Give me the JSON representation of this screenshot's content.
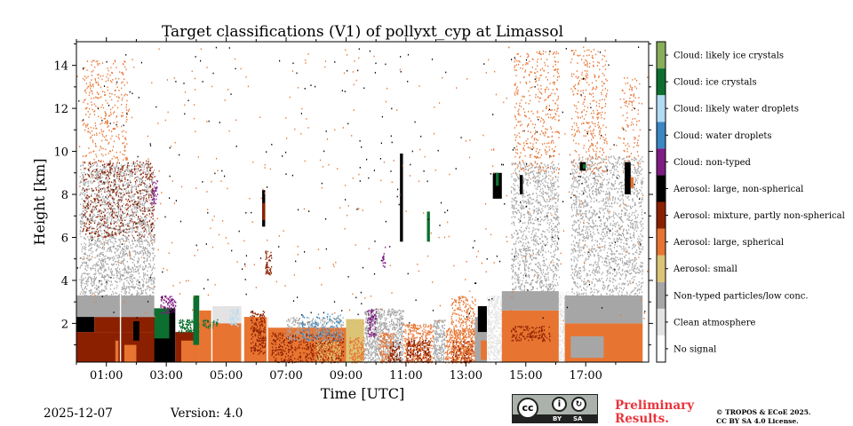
{
  "chart_data": {
    "type": "heatmap",
    "title": "Target classifications (V1) of pollyxt_cyp at Limassol",
    "xlabel": "Time [UTC]",
    "ylabel": "Height [km]",
    "xlim": [
      0,
      19.1
    ],
    "ylim": [
      0.2,
      15.1
    ],
    "x_ticks": [
      {
        "value": 1,
        "label": "01:00"
      },
      {
        "value": 3,
        "label": "03:00"
      },
      {
        "value": 5,
        "label": "05:00"
      },
      {
        "value": 7,
        "label": "07:00"
      },
      {
        "value": 9,
        "label": "09:00"
      },
      {
        "value": 11,
        "label": "11:00"
      },
      {
        "value": 13,
        "label": "13:00"
      },
      {
        "value": 15,
        "label": "15:00"
      },
      {
        "value": 17,
        "label": "17:00"
      }
    ],
    "y_ticks": [
      {
        "value": 2,
        "label": "2"
      },
      {
        "value": 4,
        "label": "4"
      },
      {
        "value": 6,
        "label": "6"
      },
      {
        "value": 8,
        "label": "8"
      },
      {
        "value": 10,
        "label": "10"
      },
      {
        "value": 12,
        "label": "12"
      },
      {
        "value": 14,
        "label": "14"
      }
    ],
    "classes": [
      {
        "id": 0,
        "label": "No signal",
        "color": "#ffffff"
      },
      {
        "id": 1,
        "label": "Clean atmosphere",
        "color": "#e3e3e3"
      },
      {
        "id": 2,
        "label": "Non-typed particles/low conc.",
        "color": "#a6a6a6"
      },
      {
        "id": 3,
        "label": "Aerosol: small",
        "color": "#dcc476"
      },
      {
        "id": 4,
        "label": "Aerosol: large, spherical",
        "color": "#e87431"
      },
      {
        "id": 5,
        "label": "Aerosol: mixture, partly non-spherical",
        "color": "#8b2000"
      },
      {
        "id": 6,
        "label": "Aerosol: large, non-spherical",
        "color": "#000000"
      },
      {
        "id": 7,
        "label": "Cloud: non-typed",
        "color": "#7e1b83"
      },
      {
        "id": 8,
        "label": "Cloud: water droplets",
        "color": "#3987c4"
      },
      {
        "id": 9,
        "label": "Cloud: likely water droplets",
        "color": "#b2dbf4"
      },
      {
        "id": 10,
        "label": "Cloud: ice crystals",
        "color": "#0d6f2f"
      },
      {
        "id": 11,
        "label": "Cloud: likely ice crystals",
        "color": "#88ae5c"
      }
    ],
    "regions": [
      {
        "x0": 0.0,
        "x1": 2.7,
        "y0": 0.2,
        "y1": 1.6,
        "cls": 5
      },
      {
        "x0": 0.3,
        "x1": 1.3,
        "y0": 0.6,
        "y1": 1.5,
        "cls": 5
      },
      {
        "x0": 1.3,
        "x1": 1.4,
        "y0": 0.2,
        "y1": 1.2,
        "cls": 4
      },
      {
        "x0": 1.6,
        "x1": 2.0,
        "y0": 0.2,
        "y1": 1.0,
        "cls": 4
      },
      {
        "x0": 0.0,
        "x1": 0.6,
        "y0": 1.6,
        "y1": 2.4,
        "cls": 6
      },
      {
        "x0": 0.6,
        "x1": 2.7,
        "y0": 1.6,
        "y1": 2.3,
        "cls": 5
      },
      {
        "x0": 1.9,
        "x1": 2.1,
        "y0": 1.2,
        "y1": 2.1,
        "cls": 6
      },
      {
        "x0": 0.0,
        "x1": 2.6,
        "y0": 2.3,
        "y1": 3.3,
        "cls": 2
      },
      {
        "x0": 0.1,
        "x1": 2.6,
        "y0": 3.3,
        "y1": 9.5,
        "cls": 2,
        "density": 0.35
      },
      {
        "x0": 0.2,
        "x1": 2.6,
        "y0": 6.0,
        "y1": 9.6,
        "cls": 5,
        "density": 0.18
      },
      {
        "x0": 0.2,
        "x1": 1.7,
        "y0": 9.5,
        "y1": 14.3,
        "cls": 4,
        "density": 0.12
      },
      {
        "x0": 2.5,
        "x1": 2.7,
        "y0": 7.5,
        "y1": 8.7,
        "cls": 7,
        "density": 0.45
      },
      {
        "x0": 2.6,
        "x1": 3.3,
        "y0": 0.2,
        "y1": 2.7,
        "cls": 6
      },
      {
        "x0": 2.6,
        "x1": 3.1,
        "y0": 1.3,
        "y1": 2.7,
        "cls": 10
      },
      {
        "x0": 2.8,
        "x1": 3.3,
        "y0": 2.5,
        "y1": 3.3,
        "cls": 7,
        "density": 0.6
      },
      {
        "x0": 3.3,
        "x1": 4.1,
        "y0": 0.2,
        "y1": 1.6,
        "cls": 5
      },
      {
        "x0": 3.4,
        "x1": 4.1,
        "y0": 1.6,
        "y1": 2.2,
        "cls": 10,
        "density": 0.8
      },
      {
        "x0": 3.5,
        "x1": 4.1,
        "y0": 0.2,
        "y1": 1.2,
        "cls": 4
      },
      {
        "x0": 3.9,
        "x1": 4.1,
        "y0": 1.0,
        "y1": 3.3,
        "cls": 10
      },
      {
        "x0": 4.1,
        "x1": 5.5,
        "y0": 0.2,
        "y1": 2.6,
        "cls": 4
      },
      {
        "x0": 4.5,
        "x1": 5.5,
        "y0": 2.0,
        "y1": 2.8,
        "cls": 1
      },
      {
        "x0": 4.2,
        "x1": 4.7,
        "y0": 1.8,
        "y1": 2.2,
        "cls": 10,
        "density": 0.6
      },
      {
        "x0": 5.1,
        "x1": 5.4,
        "y0": 1.9,
        "y1": 2.7,
        "cls": 9,
        "density": 0.5
      },
      {
        "x0": 5.6,
        "x1": 6.4,
        "y0": 0.2,
        "y1": 2.3,
        "cls": 4
      },
      {
        "x0": 5.8,
        "x1": 6.3,
        "y0": 0.6,
        "y1": 2.6,
        "cls": 5,
        "density": 0.5
      },
      {
        "x0": 6.3,
        "x1": 6.5,
        "y0": 4.3,
        "y1": 5.4,
        "cls": 5,
        "density": 0.7
      },
      {
        "x0": 6.2,
        "x1": 6.3,
        "y0": 6.5,
        "y1": 8.2,
        "cls": 6
      },
      {
        "x0": 6.2,
        "x1": 6.3,
        "y0": 6.8,
        "y1": 7.6,
        "cls": 5
      },
      {
        "x0": 6.4,
        "x1": 9.0,
        "y0": 0.2,
        "y1": 1.8,
        "cls": 4
      },
      {
        "x0": 6.5,
        "x1": 8.9,
        "y0": 0.2,
        "y1": 1.6,
        "cls": 5,
        "density": 0.35
      },
      {
        "x0": 7.0,
        "x1": 8.9,
        "y0": 1.2,
        "y1": 2.3,
        "cls": 2,
        "density": 0.4
      },
      {
        "x0": 7.5,
        "x1": 8.8,
        "y0": 1.2,
        "y1": 2.5,
        "cls": 8,
        "density": 0.2
      },
      {
        "x0": 8.0,
        "x1": 8.8,
        "y0": 0.2,
        "y1": 1.2,
        "cls": 3,
        "density": 0.45
      },
      {
        "x0": 9.0,
        "x1": 9.6,
        "y0": 0.2,
        "y1": 2.2,
        "cls": 3
      },
      {
        "x0": 9.1,
        "x1": 9.6,
        "y0": 0.2,
        "y1": 1.4,
        "cls": 4,
        "density": 0.6
      },
      {
        "x0": 9.6,
        "x1": 10.9,
        "y0": 0.2,
        "y1": 2.7,
        "cls": 2,
        "density": 0.7
      },
      {
        "x0": 9.7,
        "x1": 10.0,
        "y0": 1.4,
        "y1": 2.7,
        "cls": 7,
        "density": 0.6
      },
      {
        "x0": 10.1,
        "x1": 10.6,
        "y0": 0.2,
        "y1": 1.6,
        "cls": 4,
        "density": 0.55
      },
      {
        "x0": 10.4,
        "x1": 10.8,
        "y0": 0.2,
        "y1": 1.2,
        "cls": 5,
        "density": 0.5
      },
      {
        "x0": 10.2,
        "x1": 10.3,
        "y0": 4.6,
        "y1": 5.6,
        "cls": 7,
        "density": 0.6
      },
      {
        "x0": 10.8,
        "x1": 10.9,
        "y0": 5.8,
        "y1": 9.9,
        "cls": 6
      },
      {
        "x0": 10.9,
        "x1": 11.9,
        "y0": 0.2,
        "y1": 2.0,
        "cls": 4,
        "density": 0.55
      },
      {
        "x0": 11.0,
        "x1": 11.8,
        "y0": 0.2,
        "y1": 1.3,
        "cls": 5,
        "density": 0.55
      },
      {
        "x0": 11.7,
        "x1": 11.8,
        "y0": 5.8,
        "y1": 7.2,
        "cls": 10
      },
      {
        "x0": 11.9,
        "x1": 12.3,
        "y0": 0.2,
        "y1": 2.2,
        "cls": 2,
        "density": 0.7
      },
      {
        "x0": 12.3,
        "x1": 13.3,
        "y0": 0.2,
        "y1": 1.8,
        "cls": 4,
        "density": 0.6
      },
      {
        "x0": 12.5,
        "x1": 13.2,
        "y0": 0.2,
        "y1": 1.2,
        "cls": 5,
        "density": 0.4
      },
      {
        "x0": 12.5,
        "x1": 13.3,
        "y0": 0.2,
        "y1": 3.3,
        "cls": 4,
        "density": 0.35
      },
      {
        "x0": 13.3,
        "x1": 13.7,
        "y0": 0.2,
        "y1": 2.3,
        "cls": 2
      },
      {
        "x0": 13.4,
        "x1": 13.7,
        "y0": 1.6,
        "y1": 2.8,
        "cls": 6
      },
      {
        "x0": 13.5,
        "x1": 13.7,
        "y0": 0.3,
        "y1": 1.2,
        "cls": 4
      },
      {
        "x0": 13.7,
        "x1": 14.2,
        "y0": 0.2,
        "y1": 3.3,
        "cls": 1,
        "density": 0.7
      },
      {
        "x0": 13.9,
        "x1": 14.2,
        "y0": 7.8,
        "y1": 9.0,
        "cls": 6
      },
      {
        "x0": 14.0,
        "x1": 14.1,
        "y0": 8.4,
        "y1": 9.0,
        "cls": 10
      },
      {
        "x0": 14.2,
        "x1": 16.1,
        "y0": 0.2,
        "y1": 2.6,
        "cls": 4
      },
      {
        "x0": 14.2,
        "x1": 16.1,
        "y0": 2.6,
        "y1": 3.5,
        "cls": 2
      },
      {
        "x0": 14.5,
        "x1": 15.8,
        "y0": 1.2,
        "y1": 1.9,
        "cls": 5,
        "density": 0.4
      },
      {
        "x0": 14.5,
        "x1": 16.1,
        "y0": 3.5,
        "y1": 9.5,
        "cls": 2,
        "density": 0.3
      },
      {
        "x0": 14.6,
        "x1": 16.1,
        "y0": 9.0,
        "y1": 14.7,
        "cls": 4,
        "density": 0.12
      },
      {
        "x0": 14.8,
        "x1": 14.9,
        "y0": 8.0,
        "y1": 8.9,
        "cls": 6
      },
      {
        "x0": 16.1,
        "x1": 16.4,
        "y0": 0.2,
        "y1": 3.5,
        "cls": 1,
        "density": 0.6
      },
      {
        "x0": 16.3,
        "x1": 18.9,
        "y0": 0.2,
        "y1": 2.0,
        "cls": 4
      },
      {
        "x0": 16.5,
        "x1": 17.6,
        "y0": 0.4,
        "y1": 1.4,
        "cls": 2
      },
      {
        "x0": 16.3,
        "x1": 18.9,
        "y0": 2.0,
        "y1": 3.3,
        "cls": 2
      },
      {
        "x0": 16.5,
        "x1": 18.9,
        "y0": 3.3,
        "y1": 9.8,
        "cls": 2,
        "density": 0.28
      },
      {
        "x0": 16.5,
        "x1": 17.7,
        "y0": 9.0,
        "y1": 14.9,
        "cls": 4,
        "density": 0.12
      },
      {
        "x0": 18.2,
        "x1": 18.8,
        "y0": 9.0,
        "y1": 13.5,
        "cls": 4,
        "density": 0.1
      },
      {
        "x0": 16.8,
        "x1": 17.0,
        "y0": 9.1,
        "y1": 9.5,
        "cls": 6
      },
      {
        "x0": 16.9,
        "x1": 17.0,
        "y0": 9.2,
        "y1": 9.4,
        "cls": 10
      },
      {
        "x0": 18.3,
        "x1": 18.5,
        "y0": 8.0,
        "y1": 9.5,
        "cls": 6
      },
      {
        "x0": 18.5,
        "x1": 18.6,
        "y0": 8.3,
        "y1": 8.8,
        "cls": 4
      },
      {
        "x0": 0.0,
        "x1": 19.1,
        "y0": 2.0,
        "y1": 14.9,
        "cls": 6,
        "density": 0.003
      },
      {
        "x0": 0.0,
        "x1": 19.1,
        "y0": 2.0,
        "y1": 14.9,
        "cls": 4,
        "density": 0.004
      }
    ]
  },
  "footer": {
    "date": "2025-12-07",
    "version": "Version: 4.0",
    "preliminary_line1": "Preliminary",
    "preliminary_line2": "Results.",
    "copyright_line1": "© TROPOS & ECoE 2025.",
    "copyright_line2": "CC BY SA 4.0 License.",
    "license_by": "BY",
    "license_sa": "SA",
    "license_cc": "cc"
  }
}
